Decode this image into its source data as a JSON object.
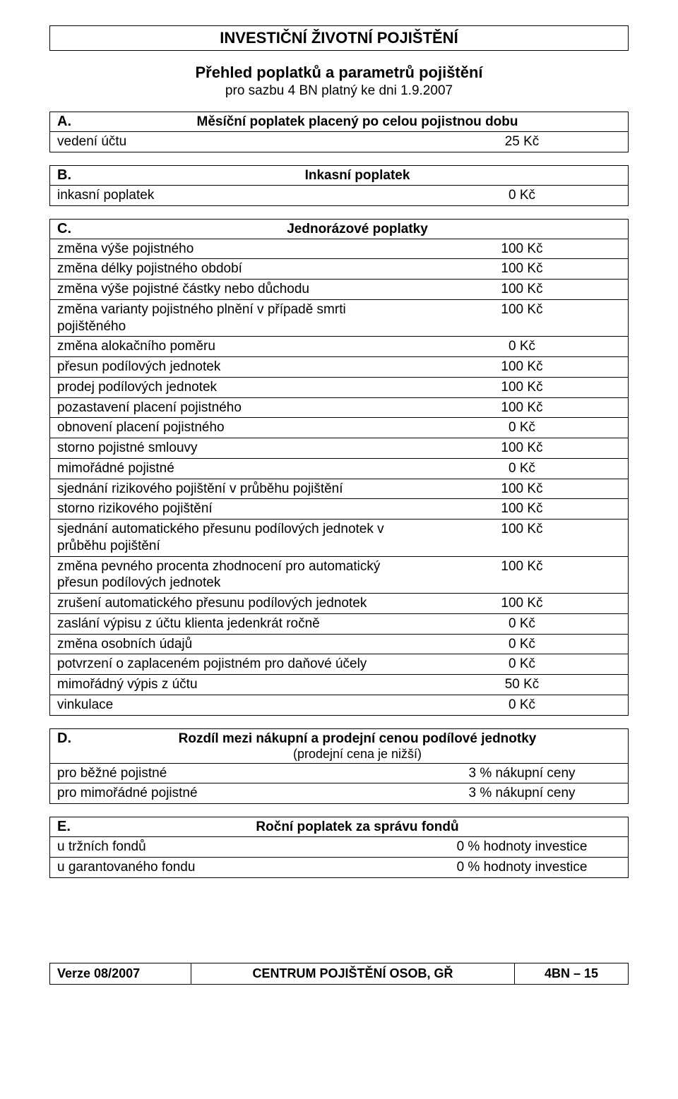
{
  "header": {
    "main_title": "INVESTIČNÍ ŽIVOTNÍ POJIŠTĚNÍ",
    "sub_title": "Přehled poplatků a parametrů pojištění",
    "sub_sub": "pro sazbu 4 BN platný ke dni 1.9.2007"
  },
  "sections": {
    "A": {
      "letter": "A.",
      "title": "Měsíční poplatek placený po celou pojistnou dobu",
      "rows": [
        {
          "label": "vedení účtu",
          "value": "25 Kč"
        }
      ]
    },
    "B": {
      "letter": "B.",
      "title": "Inkasní poplatek",
      "rows": [
        {
          "label": "inkasní poplatek",
          "value": "0 Kč"
        }
      ]
    },
    "C": {
      "letter": "C.",
      "title": "Jednorázové poplatky",
      "rows": [
        {
          "label": "změna výše pojistného",
          "value": "100 Kč"
        },
        {
          "label": "změna délky pojistného období",
          "value": "100 Kč"
        },
        {
          "label": "změna výše pojistné částky nebo důchodu",
          "value": "100 Kč"
        },
        {
          "label": "změna varianty pojistného plnění v případě smrti pojištěného",
          "value": "100 Kč"
        },
        {
          "label": "změna alokačního poměru",
          "value": "0 Kč"
        },
        {
          "label": "přesun podílových jednotek",
          "value": "100 Kč"
        },
        {
          "label": "prodej podílových jednotek",
          "value": "100 Kč"
        },
        {
          "label": "pozastavení placení pojistného",
          "value": "100 Kč"
        },
        {
          "label": "obnovení placení pojistného",
          "value": "0 Kč"
        },
        {
          "label": "storno pojistné smlouvy",
          "value": "100 Kč"
        },
        {
          "label": "mimořádné pojistné",
          "value": "0 Kč"
        },
        {
          "label": "sjednání rizikového pojištění v průběhu pojištění",
          "value": "100 Kč"
        },
        {
          "label": "storno rizikového pojištění",
          "value": "100 Kč"
        },
        {
          "label": "sjednání automatického přesunu podílových jednotek v průběhu pojištění",
          "value": "100 Kč"
        },
        {
          "label": "změna pevného procenta zhodnocení pro automatický přesun podílových jednotek",
          "value": "100 Kč"
        },
        {
          "label": "zrušení automatického přesunu podílových jednotek",
          "value": "100 Kč"
        },
        {
          "label": "zaslání výpisu z účtu klienta jedenkrát ročně",
          "value": "0 Kč"
        },
        {
          "label": "změna osobních údajů",
          "value": "0 Kč"
        },
        {
          "label": "potvrzení o zaplaceném pojistném pro daňové účely",
          "value": "0 Kč"
        },
        {
          "label": "mimořádný výpis z účtu",
          "value": "50 Kč"
        },
        {
          "label": "vinkulace",
          "value": "0 Kč"
        }
      ]
    },
    "D": {
      "letter": "D.",
      "title": "Rozdíl mezi nákupní a prodejní cenou podílové jednotky",
      "subtitle": "(prodejní cena je nižší)",
      "rows": [
        {
          "label": "pro běžné pojistné",
          "value": "3 % nákupní ceny"
        },
        {
          "label": "pro mimořádné pojistné",
          "value": "3 % nákupní ceny"
        }
      ]
    },
    "E": {
      "letter": "E.",
      "title": "Roční poplatek za správu fondů",
      "rows": [
        {
          "label": "u tržních fondů",
          "value": "0 % hodnoty investice"
        },
        {
          "label": "u garantovaného fondu",
          "value": "0 % hodnoty investice"
        }
      ]
    }
  },
  "footer": {
    "c1": "Verze 08/2007",
    "c2": "CENTRUM POJIŠTĚNÍ OSOB, GŘ",
    "c3": "4BN – 15"
  }
}
